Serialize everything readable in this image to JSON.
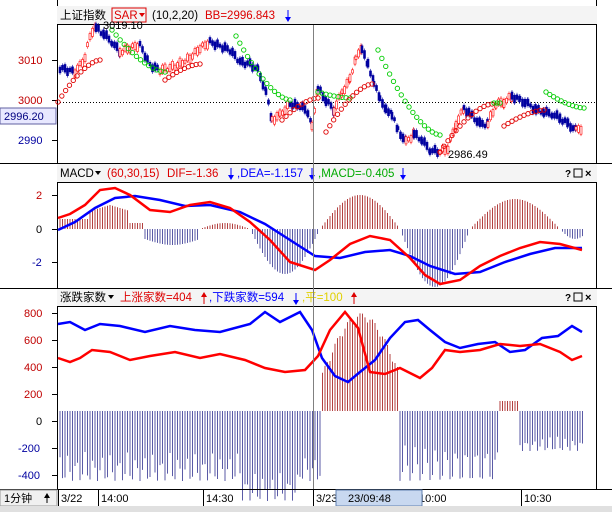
{
  "price_panel": {
    "title": "上证指数",
    "indicator": "SAR",
    "params": "(10,2,20)",
    "bb_label": "BB=2996.843",
    "y_ticks": [
      "3010",
      "3000",
      "2990"
    ],
    "current_price": "2996.20",
    "high_label": "3019.10",
    "low_label": "2986.49"
  },
  "macd_panel": {
    "name": "MACD",
    "params": "(60,30,15)",
    "dif": "DIF=-1.36",
    "dea": ",DEA=-1.157",
    "macd": ",MACD=-0.405",
    "y_ticks": [
      "2",
      "0",
      "-2"
    ]
  },
  "breadth_panel": {
    "name": "涨跌家数",
    "up": "上涨家数=404",
    "down": ",下跌家数=594",
    "flat": ",平=100",
    "y_ticks": [
      "800",
      "600",
      "400",
      "200",
      "0",
      "-200",
      "-400"
    ]
  },
  "time_axis": {
    "period_button": "1分钟",
    "labels": [
      "3/22",
      "14:00",
      "14:30",
      "3/23",
      "10:00",
      "10:30"
    ],
    "cursor_time": "23/09:48"
  },
  "toolbar_icons": [
    "question-icon",
    "maximize-icon",
    "close-icon"
  ],
  "colors": {
    "up": "#ff0000",
    "down": "#0000ff",
    "dif": "#ff0000",
    "dea": "#0000ff",
    "sar_up": "#e00000",
    "sar_down": "#00cc00",
    "flat": "#e0d000"
  }
}
